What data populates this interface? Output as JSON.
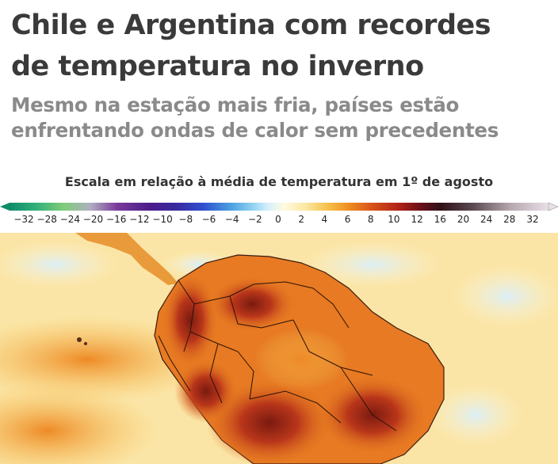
{
  "headline": {
    "line1": "Chile e Argentina com recordes",
    "line2": "de temperatura no inverno"
  },
  "subtitle": {
    "line1": "Mesmo na estação mais fria, países estão",
    "line2": "enfrentando ondas de calor sem precedentes"
  },
  "legend": {
    "title": "Escala em relação à média de temperatura em 1º de agosto",
    "ticks": [
      "−32",
      "−28",
      "−24",
      "−20",
      "−16",
      "−12",
      "−10",
      "−8",
      "−6",
      "−4",
      "−2",
      "0",
      "2",
      "4",
      "6",
      "8",
      "10",
      "12",
      "16",
      "20",
      "24",
      "28",
      "32"
    ],
    "colors": [
      "#0d8c6a",
      "#33b07a",
      "#7fcc7a",
      "#b0b0c0",
      "#7a3a9a",
      "#4b1c8a",
      "#3a2aa0",
      "#2f4fd0",
      "#4aa0e0",
      "#8fd0f0",
      "#d6f0fb",
      "#fffbe0",
      "#fbe7a0",
      "#f6c24a",
      "#ee8c1e",
      "#d9551a",
      "#b22416",
      "#6e1018",
      "#301018",
      "#5a4a52",
      "#b8a8b0",
      "#e8e0e6"
    ]
  },
  "map": {
    "description_icon": "temperature-anomaly-map"
  }
}
